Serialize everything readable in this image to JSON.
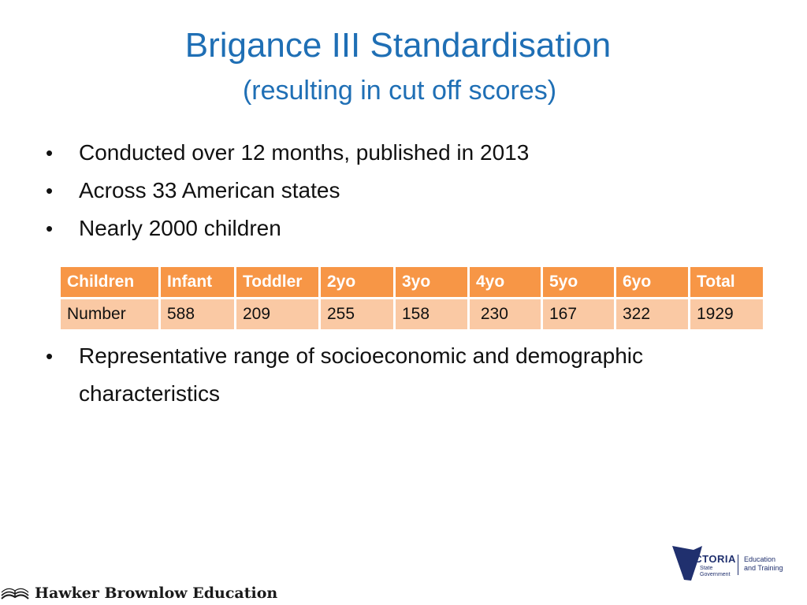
{
  "slide": {
    "title": "Brigance III Standardisation",
    "subtitle": "(resulting in cut off scores)",
    "bullet_symbol": "•",
    "bullets_top": [
      "Conducted over 12 months, published in 2013",
      "Across 33 American states",
      "Nearly 2000 children"
    ],
    "bullets_bottom": [
      "Representative range of socioeconomic and demographic characteristics"
    ]
  },
  "table": {
    "headers": [
      "Children",
      "Infant",
      "Toddler",
      "2yo",
      "3yo",
      "4yo",
      "5yo",
      "6yo",
      "Total"
    ],
    "row": [
      "Number",
      "588",
      "209",
      "255",
      "158",
      " 230",
      "167",
      "322",
      "1929"
    ],
    "header_color": "#f79646",
    "cell_color": "#fac9a4"
  },
  "footer": {
    "publisher": "Hawker Brownlow Education",
    "publisher_icon": "book-icon",
    "gov_logo": {
      "name": "VICTORIA",
      "sub_line1": "State",
      "sub_line2": "Government",
      "dept_line1": "Education",
      "dept_line2": "and Training"
    }
  }
}
